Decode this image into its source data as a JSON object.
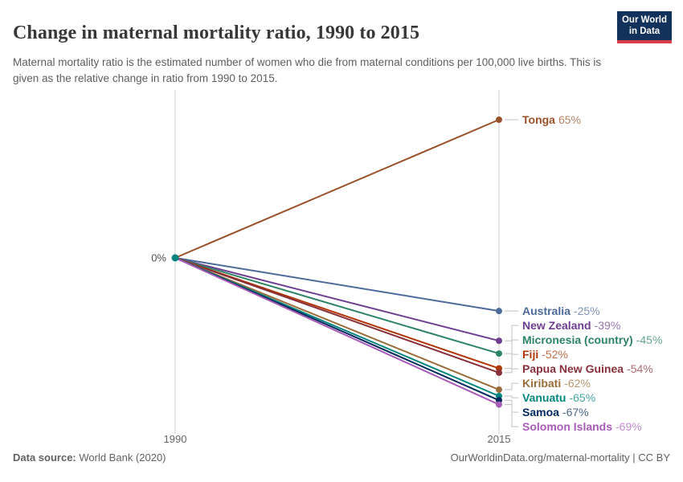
{
  "header": {
    "title": "Change in maternal mortality ratio, 1990 to 2015",
    "subtitle": "Maternal mortality ratio is the estimated number of women who die from maternal conditions per 100,000 live births. This is given as the relative change in ratio from 1990 to 2015.",
    "logo": {
      "line1": "Our World",
      "line2": "in Data",
      "bg_color": "#12325b",
      "accent_color": "#d73e4b"
    }
  },
  "chart_data": {
    "type": "line",
    "title": "Change in maternal mortality ratio, 1990 to 2015",
    "subtitle": "Maternal mortality ratio is the estimated number of women who die from maternal conditions per 100,000 live births. This is given as the relative change in ratio from 1990 to 2015.",
    "x": [
      1990,
      2015
    ],
    "x_tick_labels": [
      "1990",
      "2015"
    ],
    "baseline_label": "0%",
    "ylabel": "",
    "xlabel": "",
    "ylim": [
      -69,
      65
    ],
    "grid": false,
    "legend_position": "end-of-line labels",
    "axis_color": "#cfcfcf",
    "connector_color": "#c0c0c0",
    "start_dot_color": "#00847e",
    "series": [
      {
        "name": "Tonga",
        "values": [
          0,
          65
        ],
        "display_value": "65%",
        "color": "#9a5129"
      },
      {
        "name": "Australia",
        "values": [
          0,
          -25
        ],
        "display_value": "-25%",
        "color": "#4c6a9c"
      },
      {
        "name": "New Zealand",
        "values": [
          0,
          -39
        ],
        "display_value": "-39%",
        "color": "#6d3e91"
      },
      {
        "name": "Micronesia (country)",
        "values": [
          0,
          -45
        ],
        "display_value": "-45%",
        "color": "#2c8465"
      },
      {
        "name": "Fiji",
        "values": [
          0,
          -52
        ],
        "display_value": "-52%",
        "color": "#b13507"
      },
      {
        "name": "Papua New Guinea",
        "values": [
          0,
          -54
        ],
        "display_value": "-54%",
        "color": "#883039"
      },
      {
        "name": "Kiribati",
        "values": [
          0,
          -62
        ],
        "display_value": "-62%",
        "color": "#996d39"
      },
      {
        "name": "Vanuatu",
        "values": [
          0,
          -65
        ],
        "display_value": "-65%",
        "color": "#00847e"
      },
      {
        "name": "Samoa",
        "values": [
          0,
          -67
        ],
        "display_value": "-67%",
        "color": "#00295b"
      },
      {
        "name": "Solomon Islands",
        "values": [
          0,
          -69
        ],
        "display_value": "-69%",
        "color": "#a85cb8"
      }
    ]
  },
  "footer": {
    "source_label": "Data source:",
    "source_value": " World Bank (2020)",
    "credit": "OurWorldinData.org/maternal-mortality | CC BY"
  }
}
